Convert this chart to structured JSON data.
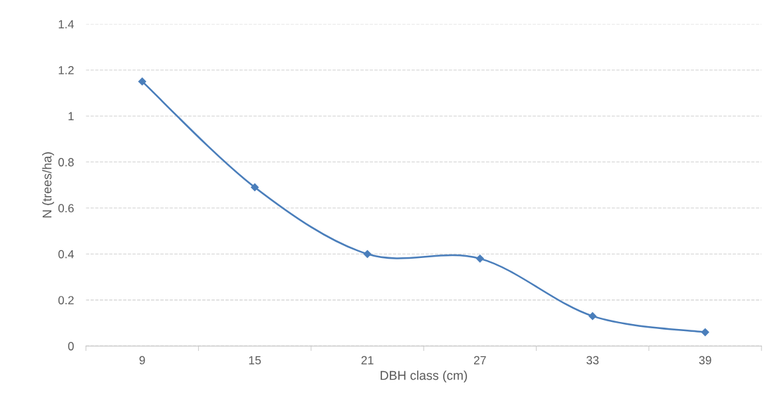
{
  "chart_data": {
    "type": "line",
    "xlabel": "DBH class (cm)",
    "ylabel": "N (trees/ha)",
    "categories": [
      "9",
      "15",
      "21",
      "27",
      "33",
      "39"
    ],
    "series": [
      {
        "color": "#4a7ebb",
        "values": [
          1.15,
          0.69,
          0.4,
          0.38,
          0.13,
          0.06
        ]
      }
    ],
    "ylim": [
      0,
      1.4
    ],
    "yticks": [
      0,
      0.2,
      0.4,
      0.6,
      0.8,
      1,
      1.2,
      1.4
    ],
    "grid": "y",
    "marker": "diamond",
    "line_style": "solid",
    "legend": false
  }
}
